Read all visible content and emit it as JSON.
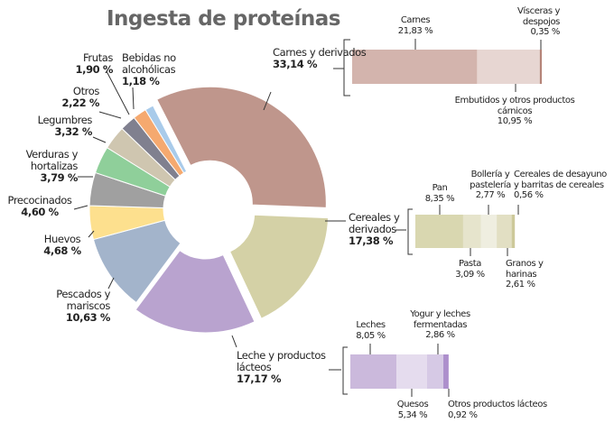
{
  "chart_data": {
    "type": "pie",
    "title": "Ingesta de proteínas",
    "slices": [
      {
        "label": "Carnes y derivados",
        "value": 33.14,
        "value_label": "33,14 %",
        "color": "#bf968c",
        "exploded": true
      },
      {
        "label": "Cereales y derivados",
        "value": 17.38,
        "value_label": "17,38 %",
        "color": "#d4d1a6",
        "exploded": true
      },
      {
        "label": "Leche y productos lácteos",
        "value": 17.17,
        "value_label": "17,17 %",
        "color": "#b9a3cf",
        "exploded": true
      },
      {
        "label": "Pescados y mariscos",
        "value": 10.63,
        "value_label": "10,63 %",
        "color": "#a3b4cb",
        "exploded": false
      },
      {
        "label": "Huevos",
        "value": 4.68,
        "value_label": "4,68 %",
        "color": "#fde08e",
        "exploded": false
      },
      {
        "label": "Precocinados",
        "value": 4.6,
        "value_label": "4,60 %",
        "color": "#a0a0a0",
        "exploded": false
      },
      {
        "label": "Verduras y hortalizas",
        "value": 3.79,
        "value_label": "3,79 %",
        "color": "#8fcf9a",
        "exploded": false
      },
      {
        "label": "Legumbres",
        "value": 3.32,
        "value_label": "3,32 %",
        "color": "#cfc6b0",
        "exploded": false
      },
      {
        "label": "Otros",
        "value": 2.22,
        "value_label": "2,22 %",
        "color": "#80808f",
        "exploded": false
      },
      {
        "label": "Frutas",
        "value": 1.9,
        "value_label": "1,90 %",
        "color": "#f5a96f",
        "exploded": false
      },
      {
        "label": "Bebidas no alcohólicas",
        "value": 1.18,
        "value_label": "1,18 %",
        "color": "#a9cbea",
        "exploded": false
      }
    ],
    "breakdowns": [
      {
        "parent": "Carnes y derivados",
        "segments": [
          {
            "label": "Carnes",
            "value": 21.83,
            "value_label": "21,83 %",
            "color": "#d3b4ad"
          },
          {
            "label": "Embutidos y otros productos cárnicos",
            "value": 10.95,
            "value_label": "10,95 %",
            "color": "#e7d6d2"
          },
          {
            "label": "Vísceras y despojos",
            "value": 0.35,
            "value_label": "0,35 %",
            "color": "#b58478"
          }
        ]
      },
      {
        "parent": "Cereales y derivados",
        "segments": [
          {
            "label": "Pan",
            "value": 8.35,
            "value_label": "8,35 %",
            "color": "#d9d7b0"
          },
          {
            "label": "Pasta",
            "value": 3.09,
            "value_label": "3,09 %",
            "color": "#e6e4cc"
          },
          {
            "label": "Bollería y pastelería",
            "value": 2.77,
            "value_label": "2,77 %",
            "color": "#efeee0"
          },
          {
            "label": "Granos y harinas",
            "value": 2.61,
            "value_label": "2,61 %",
            "color": "#e2dfc3"
          },
          {
            "label": "Cereales de desayuno y barritas de cereales",
            "value": 0.56,
            "value_label": "0,56 %",
            "color": "#cdc99a"
          }
        ]
      },
      {
        "parent": "Leche y productos lácteos",
        "segments": [
          {
            "label": "Leches",
            "value": 8.05,
            "value_label": "8,05 %",
            "color": "#cbb9dc"
          },
          {
            "label": "Quesos",
            "value": 5.34,
            "value_label": "5,34 %",
            "color": "#e5dcee"
          },
          {
            "label": "Yogur y leches fermentadas",
            "value": 2.86,
            "value_label": "2,86 %",
            "color": "#d6c9e5"
          },
          {
            "label": "Otros productos lácteos",
            "value": 0.92,
            "value_label": "0,92 %",
            "color": "#ad8fcc"
          }
        ]
      }
    ]
  }
}
